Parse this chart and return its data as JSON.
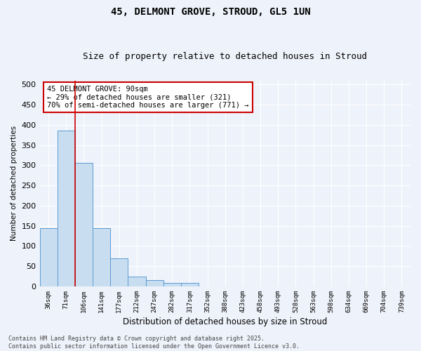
{
  "title": "45, DELMONT GROVE, STROUD, GL5 1UN",
  "subtitle": "Size of property relative to detached houses in Stroud",
  "xlabel": "Distribution of detached houses by size in Stroud",
  "ylabel": "Number of detached properties",
  "bin_labels": [
    "36sqm",
    "71sqm",
    "106sqm",
    "141sqm",
    "177sqm",
    "212sqm",
    "247sqm",
    "282sqm",
    "317sqm",
    "352sqm",
    "388sqm",
    "423sqm",
    "458sqm",
    "493sqm",
    "528sqm",
    "563sqm",
    "598sqm",
    "634sqm",
    "669sqm",
    "704sqm",
    "739sqm"
  ],
  "bar_heights": [
    145,
    385,
    305,
    145,
    70,
    25,
    15,
    8,
    8,
    0,
    0,
    0,
    0,
    0,
    0,
    0,
    0,
    0,
    0,
    0,
    0
  ],
  "bar_color": "#c9ddf0",
  "bar_edge_color": "#5b9bd5",
  "vline_x": 1.5,
  "vline_color": "#cc0000",
  "annotation_text": "45 DELMONT GROVE: 90sqm\n← 29% of detached houses are smaller (321)\n70% of semi-detached houses are larger (771) →",
  "annotation_box_color": "white",
  "annotation_box_edge": "#cc0000",
  "ylim": [
    0,
    510
  ],
  "yticks": [
    0,
    50,
    100,
    150,
    200,
    250,
    300,
    350,
    400,
    450,
    500
  ],
  "footer": "Contains HM Land Registry data © Crown copyright and database right 2025.\nContains public sector information licensed under the Open Government Licence v3.0.",
  "bg_color": "#eef2fa",
  "grid_color": "#ffffff",
  "title_fontsize": 10,
  "subtitle_fontsize": 9
}
